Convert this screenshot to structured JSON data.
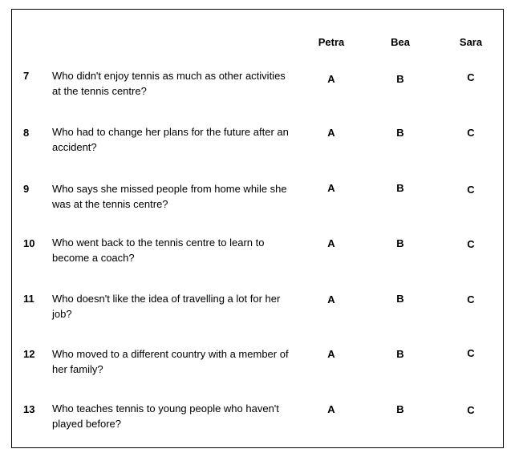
{
  "headers": [
    "Petra",
    "Bea",
    "Sara"
  ],
  "questions": [
    {
      "num": "7",
      "text": "Who didn't enjoy tennis as much as other activities at the tennis centre?",
      "options": [
        "A",
        "B",
        "C"
      ]
    },
    {
      "num": "8",
      "text": "Who had to change her plans for the future after an accident?",
      "options": [
        "A",
        "B",
        "C"
      ]
    },
    {
      "num": "9",
      "text": "Who says she missed people from home while she was at the tennis centre?",
      "options": [
        "A",
        "B",
        "C"
      ]
    },
    {
      "num": "10",
      "text": "Who went back to the tennis centre to learn to become a coach?",
      "options": [
        "A",
        "B",
        "C"
      ]
    },
    {
      "num": "11",
      "text": "Who doesn't like the idea of travelling a lot for her job?",
      "options": [
        "A",
        "B",
        "C"
      ]
    },
    {
      "num": "12",
      "text": "Who moved to a different country with a member of her family?",
      "options": [
        "A",
        "B",
        "C"
      ]
    },
    {
      "num": "13",
      "text": "Who teaches tennis to young people who haven't played before?",
      "options": [
        "A",
        "B",
        "C"
      ]
    }
  ]
}
